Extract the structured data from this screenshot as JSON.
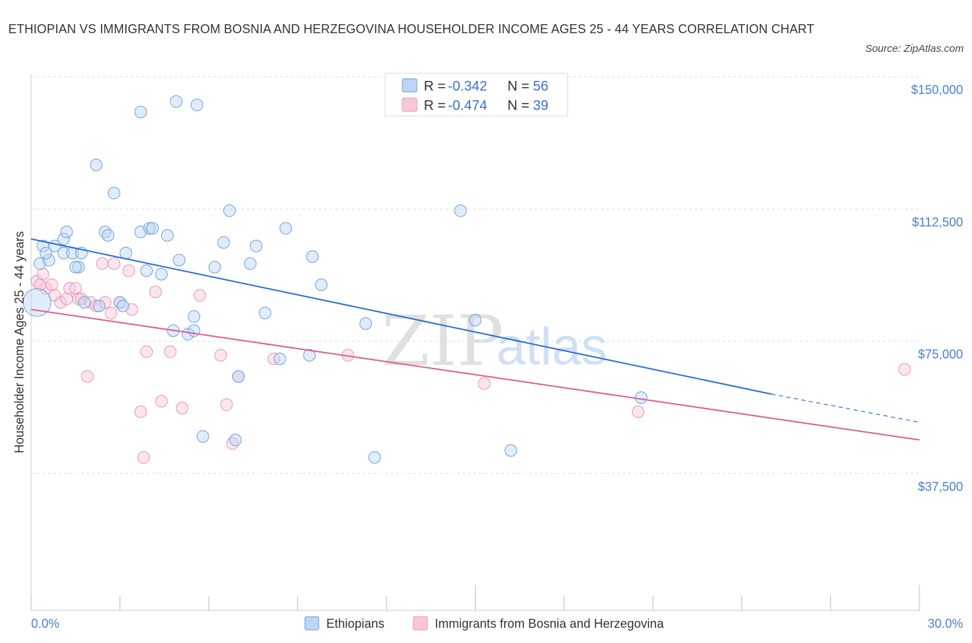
{
  "title": "ETHIOPIAN VS IMMIGRANTS FROM BOSNIA AND HERZEGOVINA HOUSEHOLDER INCOME AGES 25 - 44 YEARS CORRELATION CHART",
  "source": "Source: ZipAtlas.com",
  "watermark": {
    "zip": "ZIP",
    "atlas": "atlas"
  },
  "legend": {
    "series1": {
      "r_label": "R = ",
      "r_value": "-0.342",
      "n_label": "N = ",
      "n_value": "56"
    },
    "series2": {
      "r_label": "R = ",
      "r_value": "-0.474",
      "n_label": "N = ",
      "n_value": "39"
    }
  },
  "chart_data": {
    "type": "scatter",
    "title": "ETHIOPIAN VS IMMIGRANTS FROM BOSNIA AND HERZEGOVINA HOUSEHOLDER INCOME AGES 25 - 44 YEARS CORRELATION CHART",
    "xlabel": "",
    "ylabel": "Householder Income Ages 25 - 44 years",
    "xlim": [
      0,
      30
    ],
    "ylim": [
      0,
      150000
    ],
    "x_tick_labels": [
      "0.0%",
      "30.0%"
    ],
    "y_ticks": [
      37500,
      75000,
      112500,
      150000
    ],
    "y_tick_labels": [
      "$37,500",
      "$75,000",
      "$112,500",
      "$150,000"
    ],
    "colors": {
      "ethiopians": "#6a9fe0",
      "bosnia": "#ec8fb2",
      "ethiopians_line": "#2b6fd1",
      "bosnia_line": "#e0608e",
      "grid": "#dddddd",
      "axis_text": "#4a7fd4"
    },
    "series": [
      {
        "name": "Ethiopians",
        "points": [
          [
            0.2,
            86000
          ],
          [
            0.3,
            97000
          ],
          [
            0.4,
            102000
          ],
          [
            0.6,
            98000
          ],
          [
            0.5,
            100000
          ],
          [
            0.8,
            102000
          ],
          [
            1.1,
            104000
          ],
          [
            1.2,
            106000
          ],
          [
            1.1,
            100000
          ],
          [
            1.4,
            100000
          ],
          [
            1.6,
            96000
          ],
          [
            1.7,
            100000
          ],
          [
            2.2,
            125000
          ],
          [
            2.5,
            106000
          ],
          [
            2.8,
            117000
          ],
          [
            3.0,
            86000
          ],
          [
            3.2,
            100000
          ],
          [
            3.7,
            106000
          ],
          [
            3.7,
            140000
          ],
          [
            3.9,
            95000
          ],
          [
            4.0,
            107000
          ],
          [
            4.1,
            107000
          ],
          [
            4.4,
            94000
          ],
          [
            4.6,
            105000
          ],
          [
            4.8,
            78000
          ],
          [
            4.9,
            143000
          ],
          [
            5.0,
            98000
          ],
          [
            5.3,
            77000
          ],
          [
            5.5,
            78000
          ],
          [
            5.6,
            142000
          ],
          [
            5.5,
            82000
          ],
          [
            5.8,
            48000
          ],
          [
            6.2,
            96000
          ],
          [
            6.5,
            103000
          ],
          [
            6.7,
            112000
          ],
          [
            6.9,
            47000
          ],
          [
            7.0,
            65000
          ],
          [
            7.4,
            97000
          ],
          [
            7.6,
            102000
          ],
          [
            7.9,
            83000
          ],
          [
            8.4,
            70000
          ],
          [
            8.6,
            107000
          ],
          [
            9.4,
            71000
          ],
          [
            9.5,
            99000
          ],
          [
            9.8,
            91000
          ],
          [
            11.3,
            80000
          ],
          [
            11.6,
            42000
          ],
          [
            14.5,
            112000
          ],
          [
            15.0,
            81000
          ],
          [
            16.2,
            44000
          ],
          [
            20.6,
            59000
          ],
          [
            3.1,
            85000
          ],
          [
            2.3,
            85000
          ],
          [
            1.8,
            86000
          ],
          [
            1.5,
            96000
          ],
          [
            2.6,
            105000
          ]
        ]
      },
      {
        "name": "Immigrants from Bosnia and Herzegovina",
        "points": [
          [
            0.2,
            92000
          ],
          [
            0.4,
            94000
          ],
          [
            0.5,
            90000
          ],
          [
            0.7,
            91000
          ],
          [
            0.8,
            88000
          ],
          [
            1.0,
            86000
          ],
          [
            1.2,
            87000
          ],
          [
            1.3,
            90000
          ],
          [
            1.5,
            90000
          ],
          [
            1.6,
            87000
          ],
          [
            1.7,
            87000
          ],
          [
            1.9,
            65000
          ],
          [
            2.0,
            86000
          ],
          [
            2.2,
            85000
          ],
          [
            2.4,
            97000
          ],
          [
            2.5,
            86000
          ],
          [
            2.7,
            83000
          ],
          [
            2.8,
            97000
          ],
          [
            3.0,
            86000
          ],
          [
            3.3,
            95000
          ],
          [
            3.4,
            84000
          ],
          [
            3.7,
            55000
          ],
          [
            3.8,
            42000
          ],
          [
            3.9,
            72000
          ],
          [
            4.2,
            89000
          ],
          [
            4.4,
            58000
          ],
          [
            4.7,
            72000
          ],
          [
            5.1,
            56000
          ],
          [
            5.7,
            88000
          ],
          [
            6.4,
            71000
          ],
          [
            6.6,
            57000
          ],
          [
            6.8,
            46000
          ],
          [
            7.0,
            65000
          ],
          [
            8.2,
            70000
          ],
          [
            10.7,
            71000
          ],
          [
            15.3,
            63000
          ],
          [
            20.5,
            55000
          ],
          [
            29.5,
            67000
          ],
          [
            0.3,
            91000
          ]
        ]
      }
    ],
    "trend_lines": [
      {
        "name": "Ethiopians",
        "solid": [
          [
            0,
            104000
          ],
          [
            25,
            60000
          ]
        ],
        "dashed": [
          [
            25,
            60000
          ],
          [
            30,
            52000
          ]
        ]
      },
      {
        "name": "Immigrants from Bosnia and Herzegovina",
        "solid": [
          [
            0,
            84000
          ],
          [
            30,
            47000
          ]
        ]
      }
    ],
    "legend_position": "top-center",
    "bottom_legend": [
      "Ethiopians",
      "Immigrants from Bosnia and Herzegovina"
    ]
  }
}
